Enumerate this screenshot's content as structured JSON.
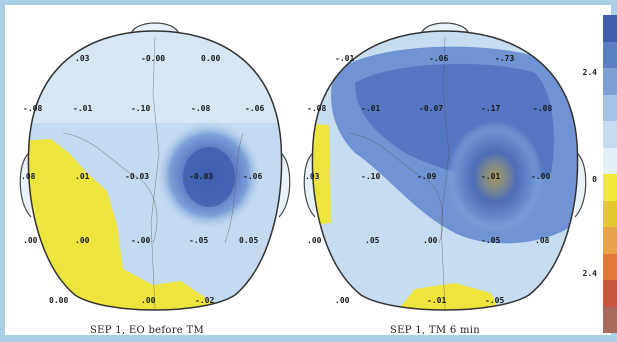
{
  "maps": [
    {
      "caption": "SEP 1, EO before TM",
      "values": [
        ".03",
        "-0.00",
        "0.00",
        "-.08",
        "-.01",
        "-.10",
        "-.08",
        "-.06",
        ".08",
        ".01",
        "-0.03",
        "-0.03",
        "-.06",
        ".00",
        ".00",
        "-.00",
        "-.05",
        "0.05",
        "0.00",
        ".00",
        "-.02"
      ]
    },
    {
      "caption": "SEP 1, TM 6 min",
      "values": [
        "-.01",
        "-.06",
        "-.73",
        "-.08",
        "-.01",
        "-0.07",
        "-.17",
        "-.08",
        ".03",
        "-.10",
        "-.09",
        "-.01",
        "-.00",
        ".00",
        ".05",
        ".00",
        "-.05",
        ".08",
        ".00",
        "-.01",
        "-.05"
      ]
    }
  ],
  "scale": {
    "labels": [
      "2.4",
      "0",
      "2.4"
    ],
    "colors": [
      "#3f5fae",
      "#5b7fc4",
      "#7c9fd4",
      "#a3c2e6",
      "#c6dcf1",
      "#e4eff9",
      "#f1ea3a",
      "#e6c62e",
      "#e8a24a",
      "#e3783a",
      "#c7573f",
      "#a86a5c"
    ]
  }
}
